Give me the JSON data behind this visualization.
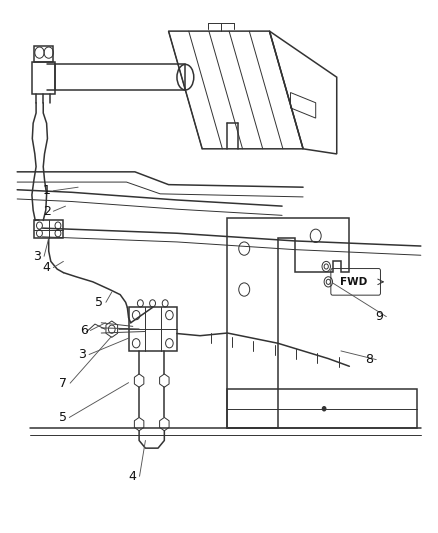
{
  "background_color": "#ffffff",
  "line_color": "#333333",
  "label_color": "#111111",
  "figsize": [
    4.38,
    5.33
  ],
  "dpi": 100
}
